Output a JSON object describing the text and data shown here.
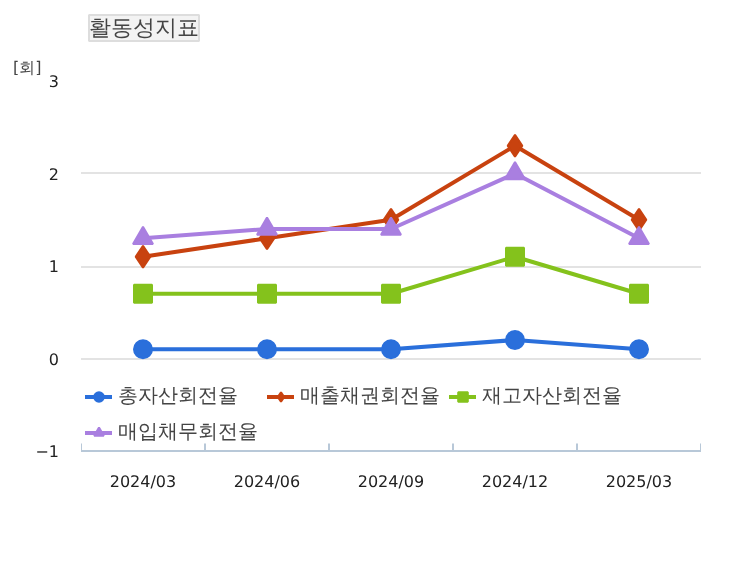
{
  "chart_data": {
    "type": "line",
    "title": "활동성지표",
    "ylabel": "[회]",
    "categories": [
      "2024/03",
      "2024/06",
      "2024/09",
      "2024/12",
      "2025/03"
    ],
    "series": [
      {
        "name": "총자산회전율",
        "color": "#2a6fdb",
        "marker": "circle",
        "values": [
          0.1,
          0.1,
          0.1,
          0.2,
          0.1
        ]
      },
      {
        "name": "매출채권회전율",
        "color": "#c8420f",
        "marker": "diamond",
        "values": [
          1.1,
          1.3,
          1.5,
          2.3,
          1.5
        ]
      },
      {
        "name": "재고자산회전율",
        "color": "#84c21c",
        "marker": "square",
        "values": [
          0.7,
          0.7,
          0.7,
          1.1,
          0.7
        ]
      },
      {
        "name": "매입채무회전율",
        "color": "#a97fe0",
        "marker": "triangle",
        "values": [
          1.3,
          1.4,
          1.4,
          2.0,
          1.3
        ]
      }
    ],
    "ylim": [
      -1,
      3
    ],
    "yticks": [
      -1,
      0,
      1,
      2,
      3
    ],
    "grid": "y",
    "legend": "bottom"
  }
}
